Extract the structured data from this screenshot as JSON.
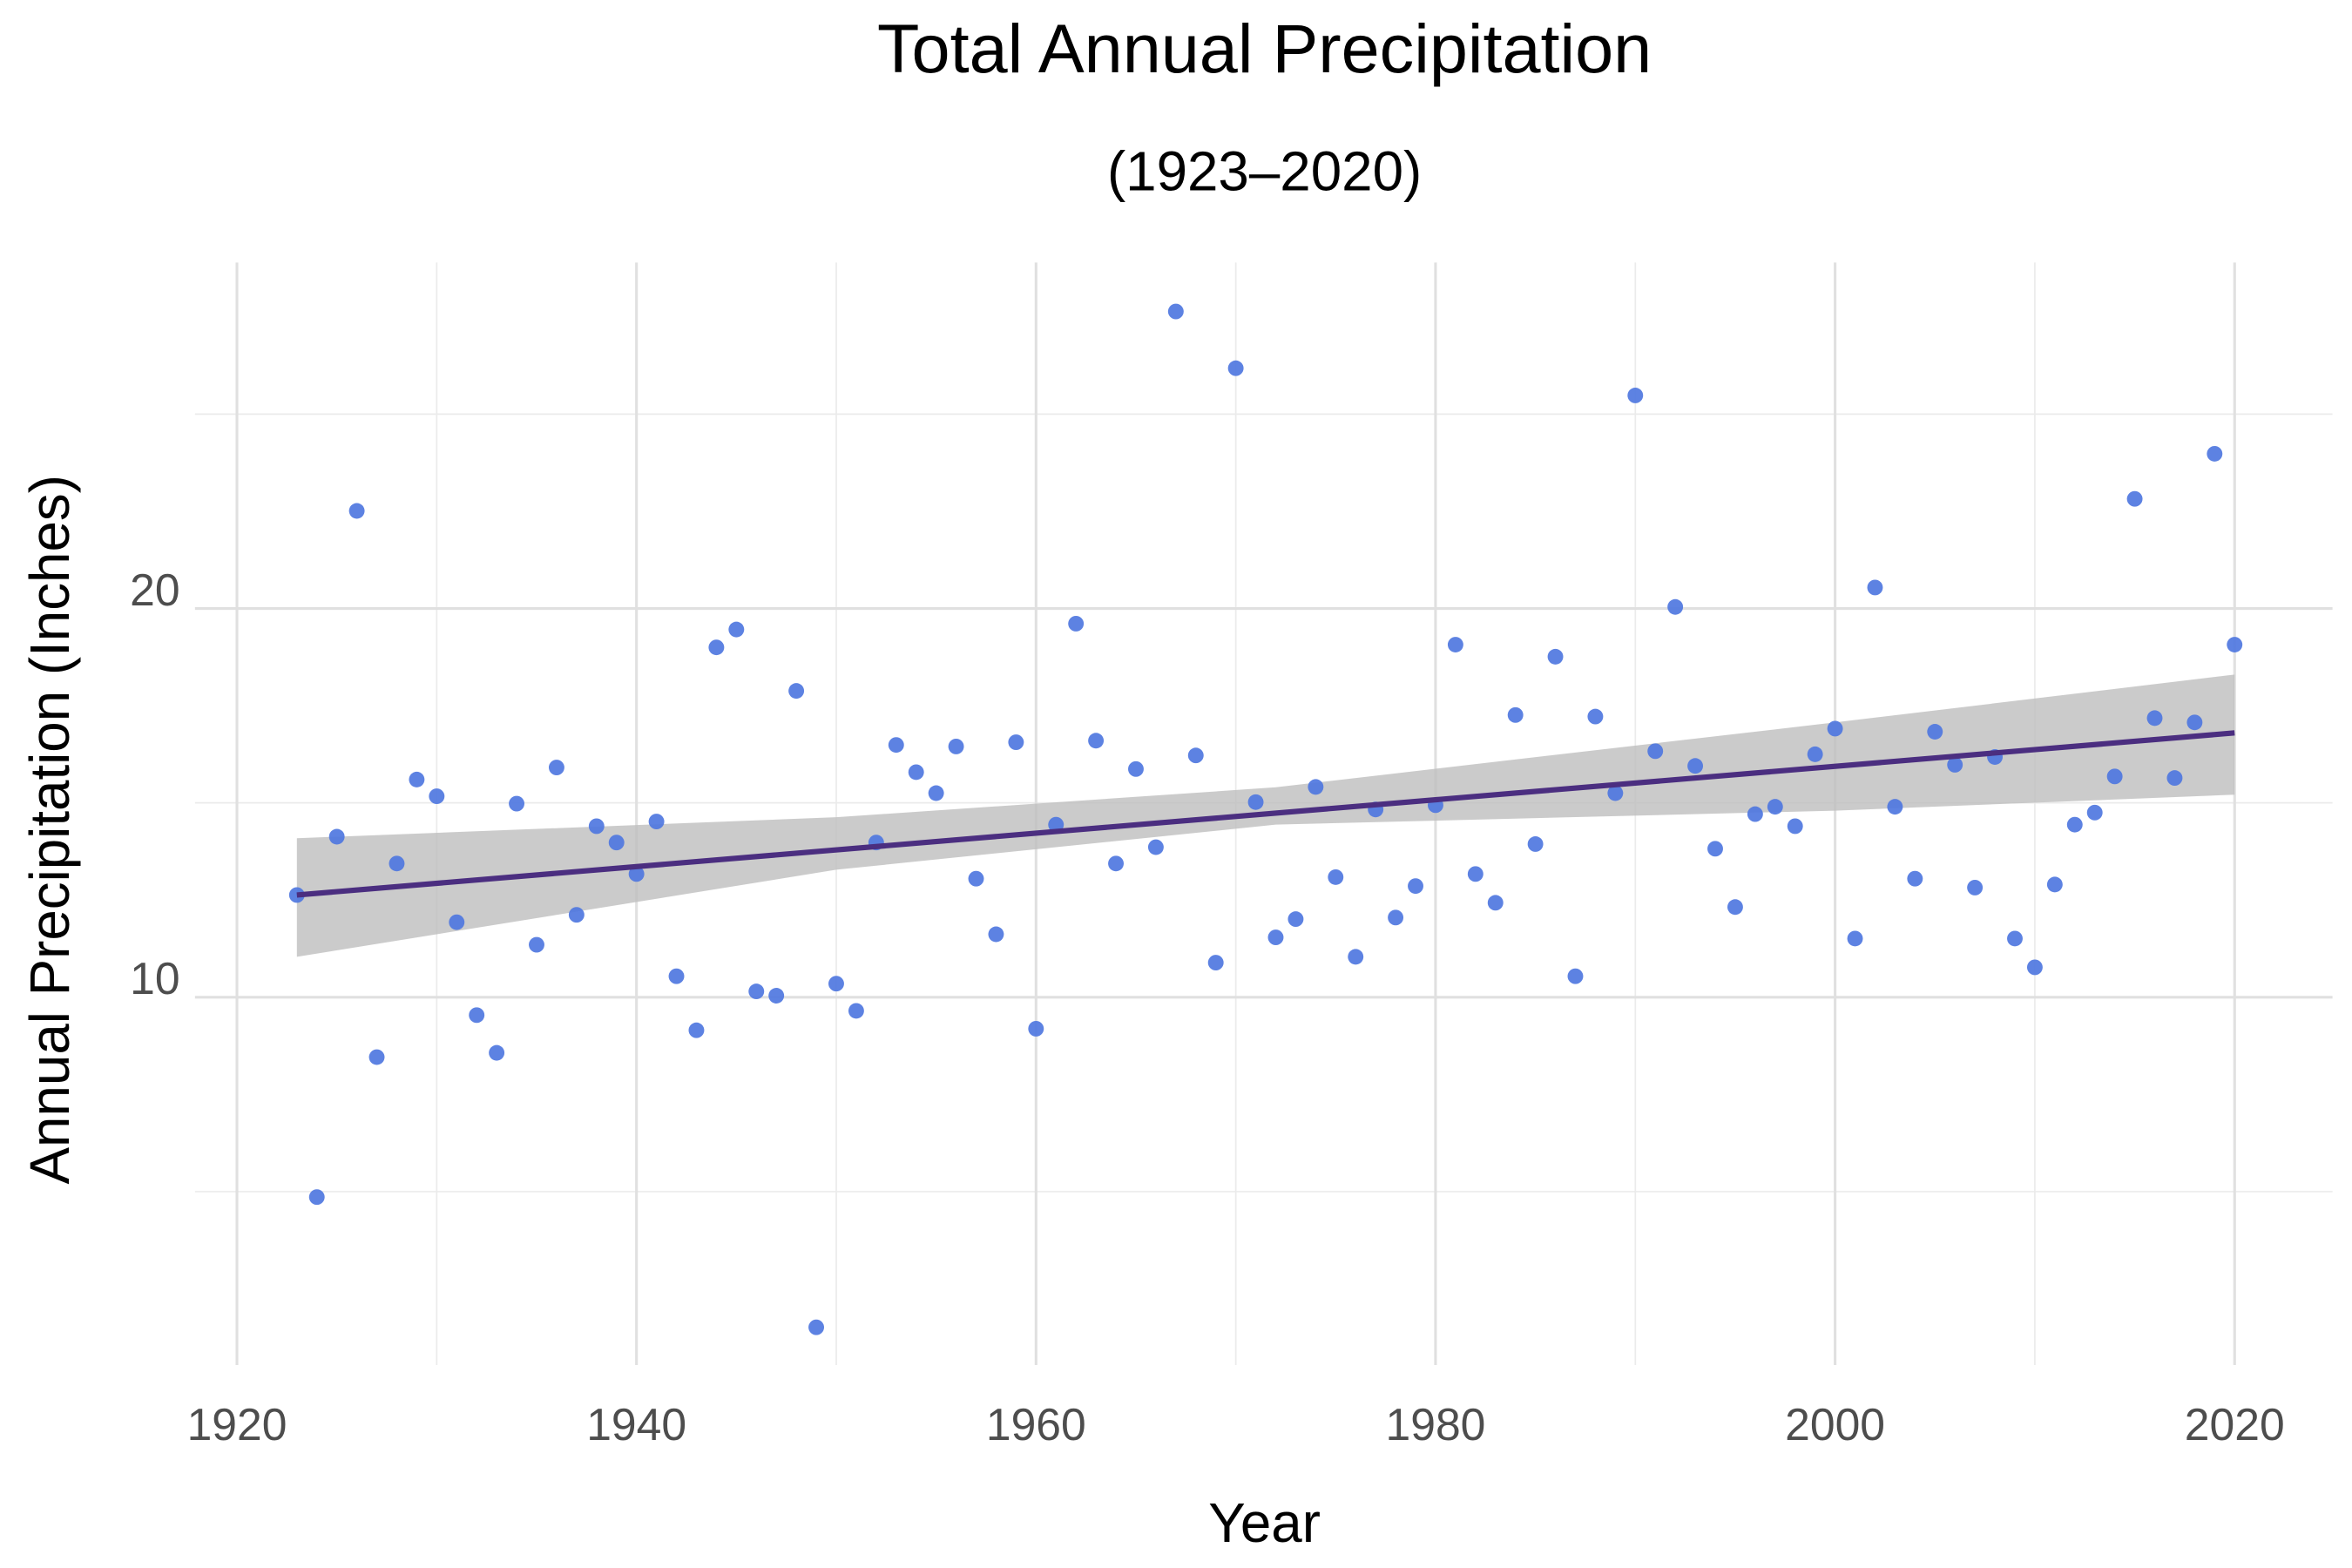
{
  "chart_data": {
    "type": "scatter",
    "title": "Total Annual Precipitation",
    "subtitle": "(1923–2020)",
    "x_label": "Year",
    "y_label": "Annual Precipitation (Inches)",
    "x": [
      1923,
      1924,
      1925,
      1926,
      1927,
      1928,
      1929,
      1930,
      1931,
      1932,
      1933,
      1934,
      1935,
      1936,
      1937,
      1938,
      1939,
      1940,
      1941,
      1942,
      1943,
      1944,
      1945,
      1946,
      1947,
      1948,
      1949,
      1950,
      1951,
      1952,
      1953,
      1954,
      1955,
      1956,
      1957,
      1958,
      1959,
      1960,
      1961,
      1962,
      1963,
      1964,
      1965,
      1966,
      1967,
      1968,
      1969,
      1970,
      1971,
      1972,
      1973,
      1974,
      1975,
      1976,
      1977,
      1978,
      1979,
      1980,
      1981,
      1982,
      1983,
      1984,
      1985,
      1986,
      1987,
      1988,
      1989,
      1990,
      1991,
      1992,
      1993,
      1994,
      1995,
      1996,
      1997,
      1998,
      1999,
      2000,
      2001,
      2002,
      2003,
      2004,
      2005,
      2006,
      2007,
      2008,
      2009,
      2010,
      2011,
      2012,
      2013,
      2014,
      2015,
      2016,
      2017,
      2018,
      2019,
      2020
    ],
    "values": [
      12.63,
      4.86,
      14.13,
      22.51,
      8.46,
      13.44,
      15.6,
      15.17,
      11.93,
      9.54,
      8.57,
      14.98,
      11.35,
      15.91,
      12.12,
      14.4,
      13.98,
      13.17,
      14.52,
      10.54,
      9.15,
      19.0,
      19.46,
      10.15,
      10.04,
      17.88,
      1.51,
      10.35,
      9.65,
      13.98,
      16.49,
      15.79,
      15.25,
      16.45,
      13.05,
      11.62,
      16.56,
      9.19,
      14.44,
      19.61,
      16.6,
      13.44,
      15.87,
      13.86,
      27.64,
      16.22,
      10.89,
      26.18,
      15.02,
      11.54,
      12.01,
      15.41,
      13.09,
      11.04,
      14.83,
      12.05,
      12.86,
      14.94,
      19.07,
      13.17,
      12.43,
      17.26,
      13.94,
      18.76,
      10.54,
      17.22,
      15.25,
      25.48,
      16.33,
      20.04,
      15.95,
      13.82,
      12.32,
      14.71,
      14.9,
      14.4,
      16.25,
      16.91,
      11.51,
      20.54,
      14.9,
      13.05,
      16.83,
      15.98,
      12.82,
      16.18,
      11.51,
      10.77,
      12.9,
      14.44,
      14.75,
      15.68,
      22.82,
      17.18,
      15.64,
      17.07,
      23.98,
      19.07
    ],
    "color": "#4f77e0",
    "trend": {
      "x": [
        1923,
        2020
      ],
      "values": [
        12.63,
        16.8
      ],
      "color": "#4b2e80"
    },
    "band": {
      "x": [
        1923,
        1950,
        1972,
        2000,
        2020
      ],
      "lower": [
        11.04,
        13.28,
        14.44,
        14.8,
        15.21
      ],
      "upper": [
        14.09,
        14.63,
        15.4,
        17.07,
        18.3
      ],
      "color": "#bebebe"
    },
    "xlim": [
      1917.9,
      2024.9
    ],
    "ylim": [
      0.54,
      28.9
    ],
    "xticks": [
      1920,
      1940,
      1960,
      1980,
      2000,
      2020
    ],
    "yticks": [
      10,
      20
    ],
    "x_minor_grid": [
      1930,
      1950,
      1970,
      1990,
      2010
    ],
    "y_minor_grid": [
      5,
      15,
      25
    ],
    "grid": true
  }
}
